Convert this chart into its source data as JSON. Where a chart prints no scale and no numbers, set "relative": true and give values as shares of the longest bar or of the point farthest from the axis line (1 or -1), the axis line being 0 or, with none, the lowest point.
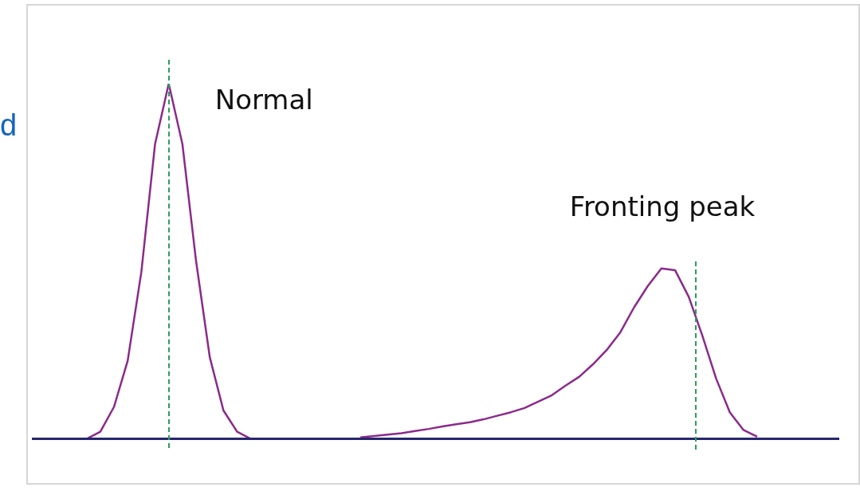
{
  "chart_data": {
    "type": "line",
    "relative": true,
    "legend": false,
    "marker": "none",
    "line_style": "solid",
    "categories": [
      null,
      null,
      null,
      null,
      null,
      null,
      null,
      null,
      null,
      null,
      null,
      null,
      null,
      null,
      null,
      null,
      null,
      null,
      null,
      null,
      null,
      null,
      null,
      null,
      null,
      null,
      null,
      null,
      null,
      null,
      null,
      null,
      null,
      null,
      null,
      null,
      null,
      null,
      null,
      null,
      null,
      null,
      null,
      null,
      null,
      null,
      null,
      null,
      null,
      null,
      null,
      null,
      null,
      null,
      null,
      null,
      null,
      null,
      null,
      null
    ],
    "series": [
      {
        "color": "#8b2a8b",
        "values": [
          null,
          null,
          null,
          null,
          0,
          0.02,
          0.09,
          0.22,
          0.47,
          0.83,
          1.0,
          0.83,
          0.5,
          0.23,
          0.08,
          0.02,
          0,
          null,
          null,
          null,
          null,
          null,
          null,
          null,
          null,
          null,
          null,
          null,
          null,
          null,
          null,
          null,
          null,
          null,
          null,
          null,
          null,
          null,
          null,
          null,
          null,
          null,
          null,
          null,
          null,
          null,
          null,
          null,
          null,
          null,
          null,
          null,
          null,
          null,
          null,
          null,
          null,
          null,
          null,
          null
        ]
      },
      {
        "color": "#8b2a8b",
        "values": [
          null,
          null,
          null,
          null,
          null,
          null,
          null,
          null,
          null,
          null,
          null,
          null,
          null,
          null,
          null,
          null,
          null,
          null,
          null,
          null,
          null,
          null,
          null,
          null,
          0.004,
          0.008,
          0.012,
          0.016,
          0.022,
          0.028,
          0.035,
          0.041,
          0.047,
          0.055,
          0.065,
          0.075,
          0.087,
          0.105,
          0.123,
          0.15,
          0.175,
          0.21,
          0.25,
          0.3,
          0.37,
          0.43,
          0.48,
          0.475,
          0.4,
          0.29,
          0.17,
          0.075,
          0.025,
          0.006,
          null,
          null,
          null,
          null,
          null,
          null
        ]
      }
    ],
    "annotations": [
      "Normal",
      "Fronting peak",
      "d"
    ]
  }
}
